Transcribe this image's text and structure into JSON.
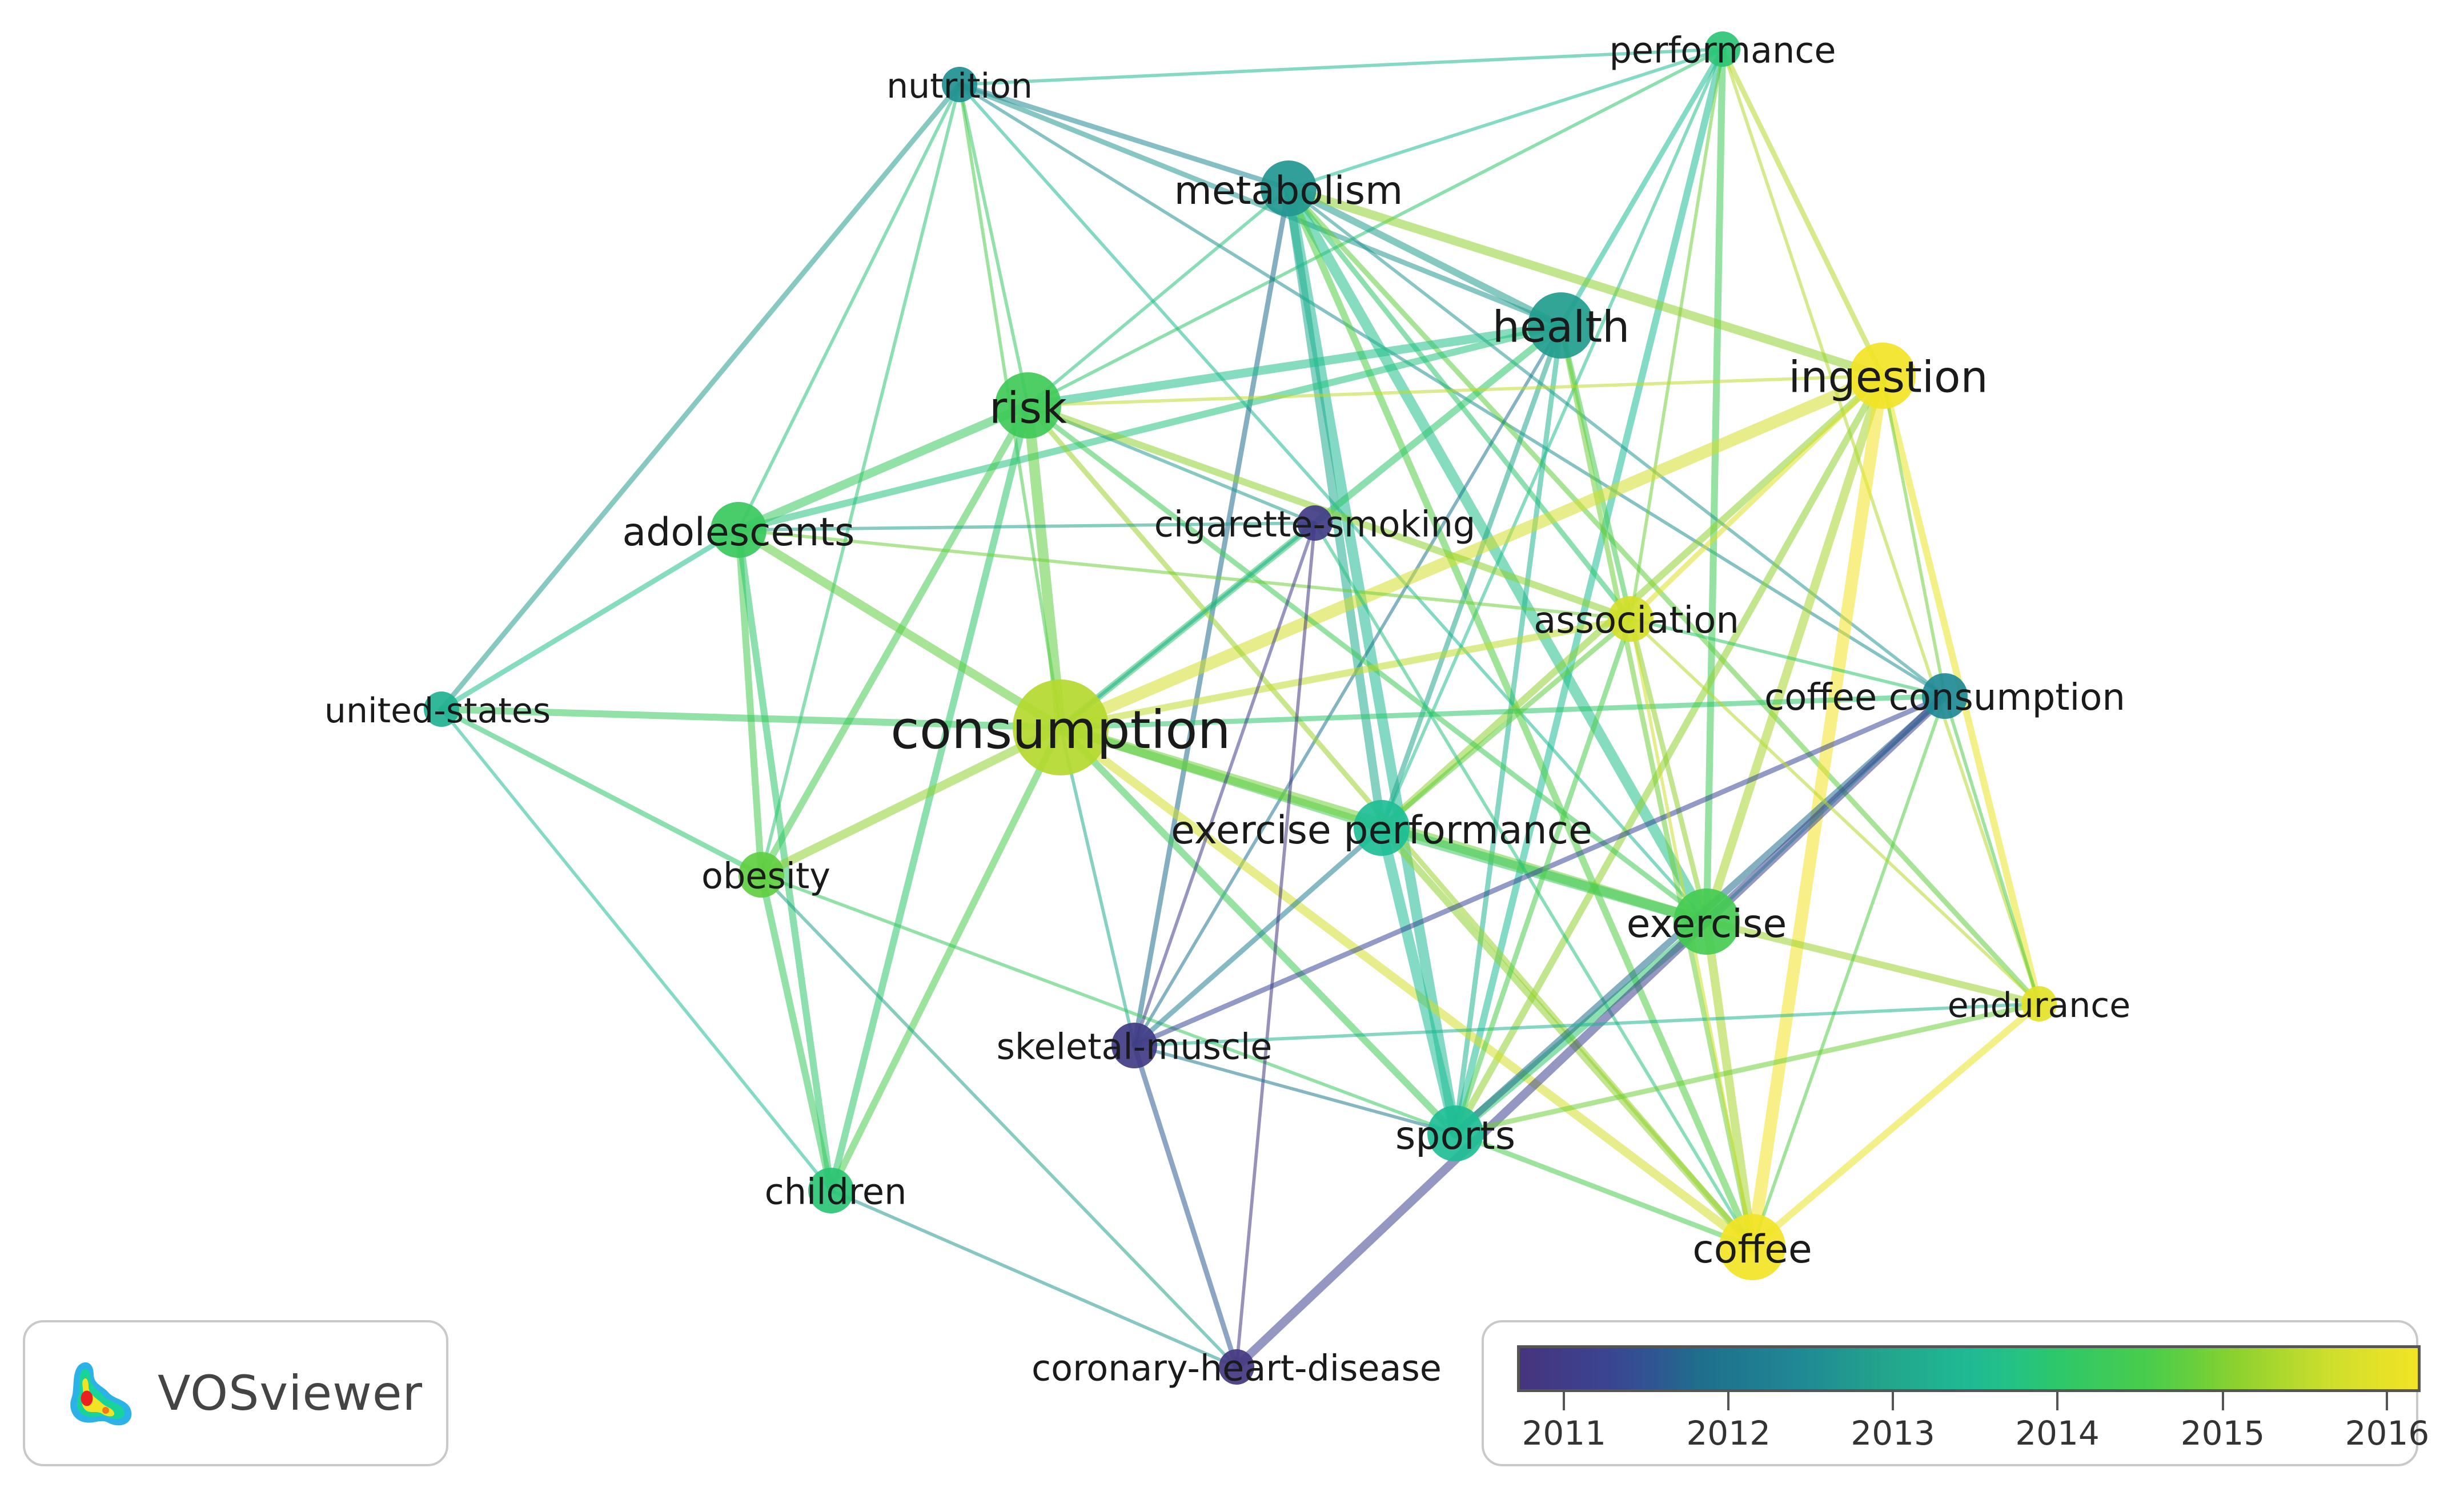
{
  "colors": {
    "c2011": "#46347d",
    "c2012": "#1f6e8c",
    "c2013": "#23a38b",
    "c2014": "#2ec76a",
    "c2015": "#8ed12f",
    "c2016": "#f2e425"
  },
  "nodes": [
    {
      "id": "nutrition",
      "label": "nutrition",
      "year": 2012.7,
      "weight": 1
    },
    {
      "id": "performance",
      "label": "performance",
      "year": 2013.9,
      "weight": 1
    },
    {
      "id": "metabolism",
      "label": "metabolism",
      "year": 2012.8,
      "weight": 3
    },
    {
      "id": "health",
      "label": "health",
      "year": 2012.9,
      "weight": 4
    },
    {
      "id": "ingestion",
      "label": "ingestion",
      "year": 2016.0,
      "weight": 4
    },
    {
      "id": "risk",
      "label": "risk",
      "year": 2014.3,
      "weight": 4
    },
    {
      "id": "adolescents",
      "label": "adolescents",
      "year": 2014.2,
      "weight": 3
    },
    {
      "id": "cigarette-smoking",
      "label": "cigarette-smoking",
      "year": 2011.2,
      "weight": 1
    },
    {
      "id": "association",
      "label": "association",
      "year": 2015.6,
      "weight": 2
    },
    {
      "id": "united-states",
      "label": "united-states",
      "year": 2013.3,
      "weight": 1
    },
    {
      "id": "consumption",
      "label": "consumption",
      "year": 2015.3,
      "weight": 10
    },
    {
      "id": "coffee consumption",
      "label": "coffee consumption",
      "year": 2012.6,
      "weight": 2
    },
    {
      "id": "exercise performance",
      "label": "exercise performance",
      "year": 2013.6,
      "weight": 3
    },
    {
      "id": "obesity",
      "label": "obesity",
      "year": 2014.7,
      "weight": 2
    },
    {
      "id": "exercise",
      "label": "exercise",
      "year": 2014.4,
      "weight": 4
    },
    {
      "id": "endurance",
      "label": "endurance",
      "year": 2015.8,
      "weight": 1
    },
    {
      "id": "skeletal-muscle",
      "label": "skeletal-muscle",
      "year": 2011.2,
      "weight": 2
    },
    {
      "id": "sports",
      "label": "sports",
      "year": 2013.6,
      "weight": 3
    },
    {
      "id": "children",
      "label": "children",
      "year": 2013.9,
      "weight": 2
    },
    {
      "id": "coffee",
      "label": "coffee",
      "year": 2016.0,
      "weight": 4
    },
    {
      "id": "coronary-heart-disease",
      "label": "coronary-heart-disease",
      "year": 2011.1,
      "weight": 1
    }
  ],
  "edges": [
    [
      "nutrition",
      "performance",
      1,
      2013.5
    ],
    [
      "nutrition",
      "metabolism",
      2,
      2012.6
    ],
    [
      "nutrition",
      "health",
      2,
      2012.8
    ],
    [
      "nutrition",
      "risk",
      1,
      2014.1
    ],
    [
      "nutrition",
      "adolescents",
      1,
      2013.8
    ],
    [
      "nutrition",
      "united-states",
      2,
      2012.9
    ],
    [
      "nutrition",
      "consumption",
      1,
      2014.5
    ],
    [
      "nutrition",
      "obesity",
      1,
      2013.9
    ],
    [
      "nutrition",
      "exercise",
      1,
      2013.5
    ],
    [
      "nutrition",
      "coffee consumption",
      1,
      2012.7
    ],
    [
      "performance",
      "metabolism",
      1,
      2013.6
    ],
    [
      "performance",
      "health",
      2,
      2013.6
    ],
    [
      "performance",
      "ingestion",
      2,
      2015.3
    ],
    [
      "performance",
      "exercise",
      3,
      2014.3
    ],
    [
      "performance",
      "sports",
      3,
      2013.6
    ],
    [
      "performance",
      "risk",
      1,
      2014.0
    ],
    [
      "performance",
      "exercise performance",
      1,
      2013.7
    ],
    [
      "performance",
      "association",
      1,
      2014.8
    ],
    [
      "performance",
      "endurance",
      1,
      2015.3
    ],
    [
      "metabolism",
      "health",
      3,
      2012.9
    ],
    [
      "metabolism",
      "ingestion",
      4,
      2015.0
    ],
    [
      "metabolism",
      "risk",
      1,
      2013.8
    ],
    [
      "metabolism",
      "exercise",
      5,
      2013.7
    ],
    [
      "metabolism",
      "sports",
      5,
      2013.5
    ],
    [
      "metabolism",
      "exercise performance",
      4,
      2013.2
    ],
    [
      "metabolism",
      "skeletal-muscle",
      2,
      2012.0
    ],
    [
      "metabolism",
      "association",
      2,
      2014.0
    ],
    [
      "metabolism",
      "coffee",
      3,
      2014.6
    ],
    [
      "metabolism",
      "endurance",
      2,
      2014.7
    ],
    [
      "metabolism",
      "coffee consumption",
      1,
      2012.8
    ],
    [
      "health",
      "risk",
      4,
      2013.7
    ],
    [
      "health",
      "adolescents",
      3,
      2013.8
    ],
    [
      "health",
      "consumption",
      3,
      2014.0
    ],
    [
      "health",
      "exercise performance",
      2,
      2013.1
    ],
    [
      "health",
      "association",
      2,
      2014.4
    ],
    [
      "health",
      "coffee",
      2,
      2014.8
    ],
    [
      "health",
      "sports",
      2,
      2013.4
    ],
    [
      "health",
      "skeletal-muscle",
      1,
      2012.2
    ],
    [
      "ingestion",
      "risk",
      1,
      2015.4
    ],
    [
      "ingestion",
      "consumption",
      6,
      2015.6
    ],
    [
      "ingestion",
      "exercise performance",
      3,
      2015.0
    ],
    [
      "ingestion",
      "exercise",
      4,
      2015.2
    ],
    [
      "ingestion",
      "sports",
      3,
      2015.0
    ],
    [
      "ingestion",
      "coffee",
      6,
      2016.0
    ],
    [
      "ingestion",
      "endurance",
      3,
      2015.9
    ],
    [
      "ingestion",
      "association",
      2,
      2015.7
    ],
    [
      "ingestion",
      "coffee consumption",
      1,
      2014.8
    ],
    [
      "risk",
      "adolescents",
      4,
      2014.2
    ],
    [
      "risk",
      "consumption",
      5,
      2014.7
    ],
    [
      "risk",
      "obesity",
      3,
      2014.4
    ],
    [
      "risk",
      "children",
      3,
      2014.0
    ],
    [
      "risk",
      "cigarette-smoking",
      1,
      2012.9
    ],
    [
      "risk",
      "association",
      3,
      2015.0
    ],
    [
      "risk",
      "exercise",
      2,
      2014.3
    ],
    [
      "risk",
      "coffee",
      2,
      2015.1
    ],
    [
      "adolescents",
      "consumption",
      4,
      2014.7
    ],
    [
      "adolescents",
      "obesity",
      3,
      2014.4
    ],
    [
      "adolescents",
      "children",
      3,
      2014.0
    ],
    [
      "adolescents",
      "united-states",
      2,
      2013.7
    ],
    [
      "adolescents",
      "association",
      1,
      2014.8
    ],
    [
      "adolescents",
      "cigarette-smoking",
      1,
      2013.0
    ],
    [
      "united-states",
      "consumption",
      3,
      2014.2
    ],
    [
      "united-states",
      "obesity",
      2,
      2014.0
    ],
    [
      "united-states",
      "children",
      1,
      2013.6
    ],
    [
      "consumption",
      "obesity",
      4,
      2015.0
    ],
    [
      "consumption",
      "children",
      3,
      2014.5
    ],
    [
      "consumption",
      "exercise performance",
      4,
      2014.4
    ],
    [
      "consumption",
      "exercise",
      5,
      2014.8
    ],
    [
      "consumption",
      "association",
      3,
      2015.4
    ],
    [
      "consumption",
      "coffee",
      4,
      2015.6
    ],
    [
      "consumption",
      "sports",
      3,
      2014.3
    ],
    [
      "consumption",
      "coffee consumption",
      2,
      2014.0
    ],
    [
      "consumption",
      "skeletal-muscle",
      1,
      2013.2
    ],
    [
      "consumption",
      "cigarette-smoking",
      1,
      2013.2
    ],
    [
      "obesity",
      "children",
      3,
      2014.2
    ],
    [
      "obesity",
      "sports",
      1,
      2014.2
    ],
    [
      "exercise performance",
      "exercise",
      5,
      2014.2
    ],
    [
      "exercise performance",
      "sports",
      5,
      2013.6
    ],
    [
      "exercise performance",
      "coffee",
      3,
      2015.0
    ],
    [
      "exercise performance",
      "skeletal-muscle",
      2,
      2012.4
    ],
    [
      "exercise performance",
      "association",
      2,
      2014.7
    ],
    [
      "exercise",
      "endurance",
      3,
      2015.1
    ],
    [
      "exercise",
      "sports",
      4,
      2014.0
    ],
    [
      "exercise",
      "coffee",
      4,
      2015.2
    ],
    [
      "exercise",
      "association",
      2,
      2015.0
    ],
    [
      "exercise",
      "coffee consumption",
      1,
      2013.6
    ],
    [
      "cigarette-smoking",
      "coronary-heart-disease",
      1,
      2011.1
    ],
    [
      "cigarette-smoking",
      "skeletal-muscle",
      1,
      2011.3
    ],
    [
      "cigarette-smoking",
      "coffee",
      1,
      2013.8
    ],
    [
      "coffee consumption",
      "sports",
      3,
      2012.0
    ],
    [
      "coffee consumption",
      "skeletal-muscle",
      2,
      2011.6
    ],
    [
      "coffee consumption",
      "coronary-heart-disease",
      4,
      2011.4
    ],
    [
      "coffee consumption",
      "coffee",
      1,
      2014.6
    ],
    [
      "coffee consumption",
      "association",
      1,
      2014.0
    ],
    [
      "coffee consumption",
      "endurance",
      1,
      2014.5
    ],
    [
      "skeletal-muscle",
      "coronary-heart-disease",
      2,
      2011.8
    ],
    [
      "skeletal-muscle",
      "sports",
      1,
      2012.3
    ],
    [
      "skeletal-muscle",
      "endurance",
      1,
      2013.4
    ],
    [
      "sports",
      "coffee",
      2,
      2014.5
    ],
    [
      "sports",
      "endurance",
      2,
      2014.8
    ],
    [
      "sports",
      "association",
      2,
      2014.5
    ],
    [
      "coffee",
      "endurance",
      3,
      2015.9
    ],
    [
      "coffee",
      "association",
      1,
      2015.5
    ],
    [
      "children",
      "coronary-heart-disease",
      1,
      2012.8
    ],
    [
      "obesity",
      "coronary-heart-disease",
      1,
      2013.0
    ],
    [
      "association",
      "endurance",
      1,
      2015.3
    ]
  ],
  "legend": {
    "ticks": [
      "2011",
      "2012",
      "2013",
      "2014",
      "2015",
      "2016"
    ]
  },
  "logo": {
    "text": "VOSviewer"
  }
}
